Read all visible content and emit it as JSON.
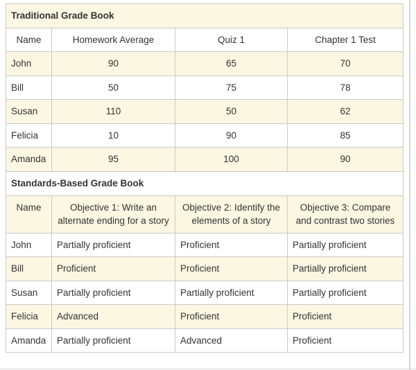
{
  "colors": {
    "stripe_bg": "#fbf7e2",
    "plain_bg": "#ffffff",
    "cell_border": "#c9c9c9",
    "text": "#333333",
    "edge_rule": "#d6d6d6"
  },
  "traditional": {
    "title": "Traditional Grade Book",
    "columns": [
      "Name",
      "Homework Average",
      "Quiz 1",
      "Chapter 1 Test"
    ],
    "rows": [
      {
        "name": "John",
        "values": [
          "90",
          "65",
          "70"
        ]
      },
      {
        "name": "Bill",
        "values": [
          "50",
          "75",
          "78"
        ]
      },
      {
        "name": "Susan",
        "values": [
          "110",
          "50",
          "62"
        ]
      },
      {
        "name": "Felicia",
        "values": [
          "10",
          "90",
          "85"
        ]
      },
      {
        "name": "Amanda",
        "values": [
          "95",
          "100",
          "90"
        ]
      }
    ]
  },
  "standards": {
    "title": "Standards-Based Grade Book",
    "columns": [
      "Name",
      "Objective 1: Write an alternate ending for a story",
      "Objective 2: Identify the elements of a story",
      "Objective 3: Compare and contrast two stories"
    ],
    "rows": [
      {
        "name": "John",
        "values": [
          "Partially proficient",
          "Proficient",
          "Partially proficient"
        ]
      },
      {
        "name": "Bill",
        "values": [
          "Proficient",
          "Proficient",
          "Partially proficient"
        ]
      },
      {
        "name": "Susan",
        "values": [
          "Partially proficient",
          "Partially proficient",
          "Partially proficient"
        ]
      },
      {
        "name": "Felicia",
        "values": [
          "Advanced",
          "Proficient",
          "Proficient"
        ]
      },
      {
        "name": "Amanda",
        "values": [
          "Partially proficient",
          "Advanced",
          "Proficient"
        ]
      }
    ]
  }
}
